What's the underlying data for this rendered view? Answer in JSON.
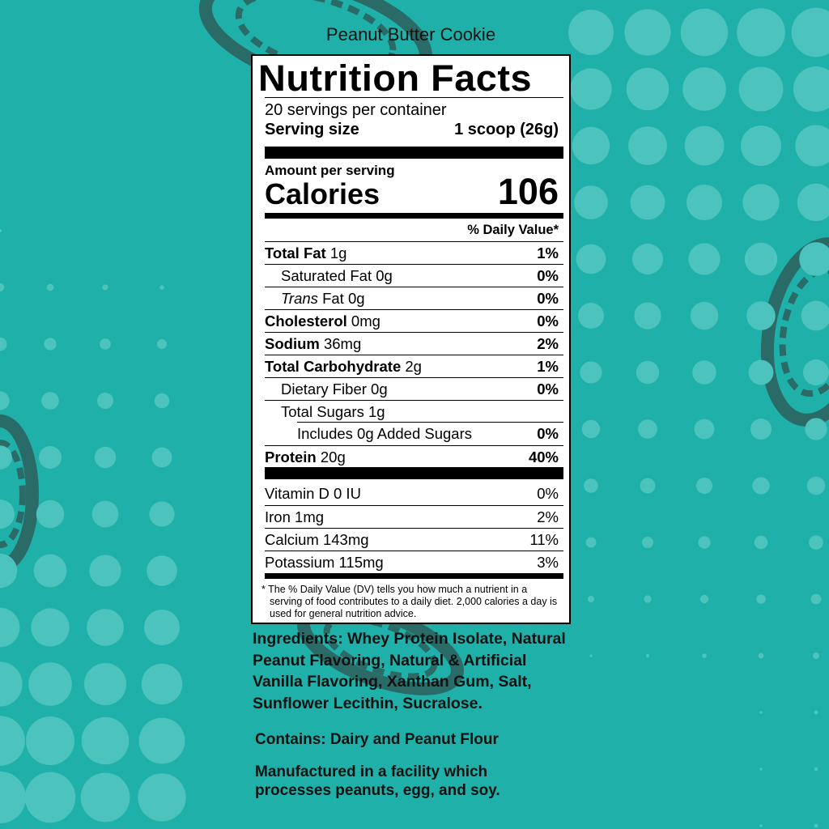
{
  "colors": {
    "background": "#1fb1a9",
    "dots": "#4cc4bd",
    "peanut": "#2a6b68"
  },
  "product_name": "Peanut Butter Cookie",
  "label": {
    "title": "Nutrition Facts",
    "servings": "20 servings per container",
    "serving_size_label": "Serving size",
    "serving_size_value": "1 scoop (26g)",
    "amount_per_serving": "Amount per serving",
    "calories_label": "Calories",
    "calories_value": "106",
    "dv_header": "% Daily Value*",
    "nutrients": [
      {
        "name": "Total Fat",
        "amount": "1g",
        "dv": "1%",
        "bold": true,
        "indent": 0
      },
      {
        "name": "Saturated Fat",
        "amount": "0g",
        "dv": "0%",
        "bold": false,
        "indent": 1
      },
      {
        "name": "Trans",
        "name_suffix": "Fat",
        "amount": "0g",
        "dv": "0%",
        "bold": false,
        "indent": 1,
        "italic": true
      },
      {
        "name": "Cholesterol",
        "amount": "0mg",
        "dv": "0%",
        "bold": true,
        "indent": 0
      },
      {
        "name": "Sodium",
        "amount": "36mg",
        "dv": "2%",
        "bold": true,
        "indent": 0
      },
      {
        "name": "Total Carbohydrate",
        "amount": "2g",
        "dv": "1%",
        "bold": true,
        "indent": 0
      },
      {
        "name": "Dietary Fiber",
        "amount": "0g",
        "dv": "0%",
        "bold": false,
        "indent": 1
      },
      {
        "name": "Total Sugars",
        "amount": "1g",
        "dv": "",
        "bold": false,
        "indent": 1
      },
      {
        "name": "Includes 0g Added Sugars",
        "amount": "",
        "dv": "0%",
        "bold": false,
        "indent": 2
      },
      {
        "name": "Protein",
        "amount": "20g",
        "dv": "40%",
        "bold": true,
        "indent": 0
      }
    ],
    "vitamins": [
      {
        "name": "Vitamin D",
        "amount": "0 IU",
        "dv": "0%"
      },
      {
        "name": "Iron",
        "amount": "1mg",
        "dv": "2%"
      },
      {
        "name": "Calcium",
        "amount": "143mg",
        "dv": "11%"
      },
      {
        "name": "Potassium",
        "amount": "115mg",
        "dv": "3%"
      }
    ],
    "footnote": "* The % Daily Value (DV) tells you how much a nutrient in a serving of food contributes to a daily diet. 2,000 calories a day is used for general nutrition advice."
  },
  "ingredients": "Ingredients: Whey Protein Isolate, Natural Peanut Flavoring, Natural & Artificial Vanilla Flavoring, Xanthan Gum, Salt, Sunflower Lecithin, Sucralose.",
  "contains": "Contains: Dairy and Peanut Flour",
  "manufactured": "Manufactured in a facility which processes peanuts, egg, and soy."
}
